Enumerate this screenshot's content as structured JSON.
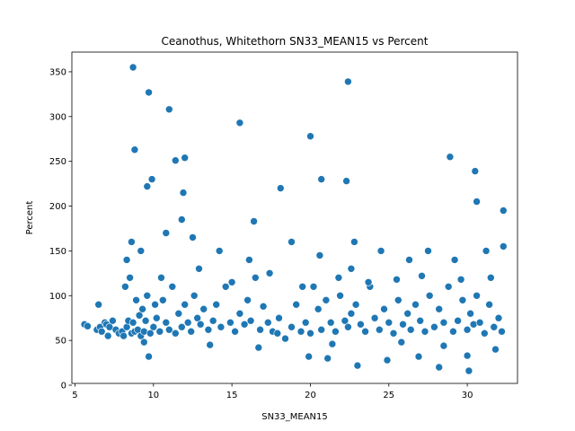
{
  "chart_data": {
    "type": "scatter",
    "title": "Ceanothus, Whitethorn SN33_MEAN15 vs Percent",
    "xlabel": "SN33_MEAN15",
    "ylabel": "Percent",
    "xlim": [
      4.8,
      33.2
    ],
    "ylim": [
      2,
      372
    ],
    "xticks": [
      5,
      10,
      15,
      20,
      25,
      30
    ],
    "yticks": [
      0,
      50,
      100,
      150,
      200,
      250,
      300,
      350
    ],
    "grid": false,
    "legend": "none",
    "point_color": "#1f77b4",
    "x": [
      5.6,
      5.8,
      6.4,
      6.5,
      6.6,
      6.7,
      6.9,
      7.0,
      7.2,
      7.4,
      7.6,
      7.8,
      8.0,
      8.1,
      8.2,
      8.3,
      8.4,
      8.5,
      8.6,
      8.7,
      8.8,
      8.9,
      9.0,
      9.1,
      9.2,
      9.3,
      9.4,
      9.5,
      9.6,
      9.8,
      10.0,
      10.1,
      10.2,
      10.4,
      10.6,
      10.8,
      11.0,
      11.2,
      11.4,
      11.6,
      11.8,
      12.0,
      12.2,
      12.4,
      12.6,
      12.8,
      13.0,
      13.2,
      13.5,
      13.8,
      14.0,
      14.3,
      14.6,
      14.9,
      15.2,
      15.5,
      15.8,
      16.0,
      16.2,
      16.5,
      16.8,
      17.0,
      17.3,
      17.6,
      17.9,
      18.0,
      18.4,
      18.8,
      19.1,
      19.4,
      19.7,
      20.0,
      20.2,
      20.5,
      20.7,
      21.0,
      21.3,
      21.6,
      21.9,
      22.2,
      22.4,
      22.6,
      22.9,
      23.2,
      23.5,
      23.8,
      24.1,
      24.4,
      24.7,
      25.0,
      25.3,
      25.6,
      25.9,
      26.2,
      26.4,
      26.7,
      27.0,
      27.3,
      27.6,
      27.9,
      28.2,
      28.5,
      28.8,
      29.1,
      29.4,
      29.7,
      30.0,
      30.2,
      30.4,
      30.6,
      30.8,
      31.1,
      31.4,
      31.7,
      32.0,
      32.2,
      8.7,
      8.8,
      9.7,
      9.9,
      11.0,
      11.4,
      11.9,
      12.0,
      15.5,
      20.0,
      22.4,
      9.6,
      20.7,
      22.3,
      28.9,
      30.5,
      11.8,
      16.4,
      18.1,
      30.6,
      32.3,
      8.6,
      9.2,
      10.8,
      12.5,
      14.2,
      16.1,
      18.8,
      20.6,
      22.8,
      24.5,
      26.3,
      27.5,
      29.2,
      31.2,
      32.3,
      22.6,
      28.2,
      30.0,
      30.1,
      23.0,
      26.9,
      9.7,
      24.9,
      19.9,
      21.1,
      8.3,
      10.5,
      12.9,
      15.0,
      17.4,
      19.5,
      21.8,
      23.7,
      25.5,
      27.1,
      29.6,
      31.5,
      7.1,
      9.4,
      13.6,
      16.7,
      21.4,
      25.8,
      28.5,
      31.8
    ],
    "y": [
      68,
      66,
      62,
      90,
      65,
      60,
      70,
      68,
      65,
      72,
      62,
      58,
      60,
      55,
      110,
      65,
      72,
      120,
      58,
      70,
      60,
      95,
      62,
      78,
      55,
      85,
      60,
      72,
      100,
      58,
      65,
      90,
      75,
      60,
      95,
      70,
      62,
      110,
      58,
      80,
      65,
      90,
      70,
      60,
      100,
      75,
      68,
      85,
      62,
      72,
      90,
      65,
      110,
      70,
      60,
      80,
      68,
      95,
      72,
      120,
      62,
      88,
      70,
      60,
      58,
      75,
      52,
      65,
      90,
      60,
      70,
      58,
      110,
      85,
      62,
      95,
      70,
      60,
      100,
      72,
      65,
      80,
      90,
      68,
      60,
      110,
      75,
      62,
      85,
      70,
      58,
      95,
      68,
      80,
      62,
      90,
      72,
      60,
      100,
      65,
      85,
      70,
      110,
      60,
      72,
      95,
      62,
      80,
      68,
      100,
      70,
      58,
      90,
      65,
      75,
      60,
      355,
      263,
      327,
      230,
      308,
      251,
      215,
      254,
      293,
      278,
      339,
      222,
      230,
      228,
      255,
      239,
      185,
      183,
      220,
      205,
      195,
      160,
      150,
      170,
      165,
      150,
      140,
      160,
      145,
      160,
      150,
      140,
      150,
      140,
      150,
      155,
      130,
      20,
      33,
      16,
      22,
      32,
      32,
      28,
      32,
      30,
      140,
      120,
      130,
      115,
      125,
      110,
      120,
      115,
      118,
      122,
      118,
      120,
      55,
      48,
      45,
      42,
      46,
      48,
      44,
      40
    ]
  }
}
